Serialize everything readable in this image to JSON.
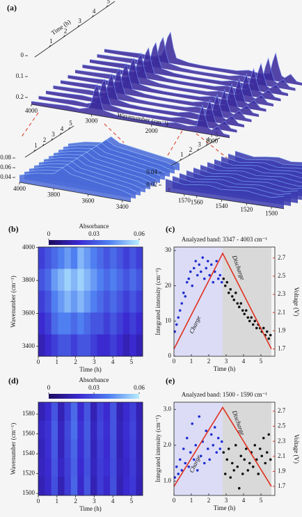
{
  "chart_data": [
    {
      "type": "surface3d",
      "panel_label": "(a)",
      "t_label": "Time (h)",
      "x_label": "Wavenumber (cm⁻¹)",
      "xlim": [
        4000,
        700
      ],
      "tlim": [
        0,
        5.6
      ],
      "xticks": [
        4000,
        3000,
        2000,
        1000
      ],
      "tticks": [
        1,
        2,
        3,
        4,
        5
      ],
      "zticks": [
        0,
        0.1,
        0.2
      ],
      "color": "#3a2a9c",
      "ridge_color": "#7fa0ff",
      "spectrum": {
        "x": [
          4000,
          3700,
          3400,
          3200,
          3050,
          3000,
          2950,
          2900,
          2850,
          2800,
          2600,
          2400,
          2200,
          2000,
          1800,
          1600,
          1400,
          1250,
          1200,
          1150,
          1100,
          1050,
          1000,
          900,
          800,
          700
        ],
        "values": [
          0.01,
          0.012,
          0.015,
          0.012,
          0.02,
          0.04,
          0.08,
          0.1,
          0.05,
          0.02,
          0.012,
          0.01,
          0.01,
          0.011,
          0.012,
          0.02,
          0.015,
          0.02,
          0.06,
          0.09,
          0.05,
          0.02,
          0.015,
          0.03,
          0.01,
          0.008
        ]
      },
      "insets": [
        {
          "xlim": [
            4000,
            3350
          ],
          "tlim": [
            0,
            5.6
          ],
          "xticks": [
            4000,
            3800,
            3600,
            3400
          ],
          "tticks": [
            1,
            2,
            3,
            4,
            5
          ],
          "zticks": [
            0.04,
            0.06,
            0.08
          ],
          "color": "#4a6ad8",
          "ridge_color": "#9fd0ff",
          "spectrum": {
            "x": [
              4000,
              3900,
              3800,
              3750,
              3700,
              3600,
              3500,
              3400,
              3350
            ],
            "values": [
              0.045,
              0.055,
              0.06,
              0.075,
              0.065,
              0.06,
              0.055,
              0.05,
              0.045
            ]
          }
        },
        {
          "xlim": [
            1585,
            1490
          ],
          "tlim": [
            0,
            5.6
          ],
          "xticks": [
            1570,
            1560,
            1540,
            1520,
            1500
          ],
          "tticks": [
            1,
            2,
            3,
            4,
            5
          ],
          "zticks": [
            0.02,
            0.04
          ],
          "color": "#3c3cb0",
          "ridge_color": "#86b8ff",
          "spectrum": {
            "x": [
              1585,
              1570,
              1560,
              1550,
              1540,
              1530,
              1520,
              1510,
              1500,
              1490
            ],
            "values": [
              0.03,
              0.025,
              0.028,
              0.03,
              0.026,
              0.028,
              0.03,
              0.027,
              0.025,
              0.03
            ]
          }
        }
      ]
    },
    {
      "type": "heatmap",
      "panel_label": "(b)",
      "colorbar_label": "Absorbance",
      "zlim": [
        0,
        0.06
      ],
      "zticks": [
        0,
        0.03,
        0.06
      ],
      "colorscale": [
        "#1d0b5e",
        "#3a2ad0",
        "#4f7ff0",
        "#b8ecff"
      ],
      "x_label": "Time (h)",
      "y_label": "Wavenumber (cm⁻¹)",
      "xlim": [
        0,
        5.6
      ],
      "xticks": [
        0,
        1,
        2,
        3,
        4,
        5
      ],
      "ylim": [
        3340,
        4003
      ],
      "yticks": [
        3400,
        3600,
        3800,
        4000
      ],
      "z": [
        [
          0.025,
          0.03,
          0.035,
          0.04,
          0.045,
          0.04,
          0.05,
          0.045,
          0.04,
          0.035,
          0.03,
          0.035,
          0.03,
          0.025,
          0.03,
          0.025
        ],
        [
          0.03,
          0.035,
          0.045,
          0.05,
          0.055,
          0.05,
          0.055,
          0.05,
          0.045,
          0.04,
          0.035,
          0.04,
          0.035,
          0.03,
          0.035,
          0.03
        ],
        [
          0.025,
          0.03,
          0.04,
          0.045,
          0.05,
          0.045,
          0.05,
          0.045,
          0.04,
          0.035,
          0.03,
          0.035,
          0.03,
          0.025,
          0.03,
          0.025
        ],
        [
          0.02,
          0.025,
          0.035,
          0.04,
          0.04,
          0.035,
          0.04,
          0.035,
          0.03,
          0.03,
          0.025,
          0.03,
          0.025,
          0.02,
          0.025,
          0.02
        ],
        [
          0.015,
          0.02,
          0.025,
          0.03,
          0.03,
          0.025,
          0.03,
          0.03,
          0.025,
          0.02,
          0.02,
          0.025,
          0.02,
          0.015,
          0.02,
          0.015
        ]
      ]
    },
    {
      "type": "scatter",
      "panel_label": "(c)",
      "title": "Analyzed band: 3347 - 4003 cm⁻¹",
      "x_label": "Time (h)",
      "y_label": "Integrated intensity (cm⁻¹)",
      "y2_label": "Voltage (V)",
      "xlim": [
        0,
        5.8
      ],
      "xticks": [
        0,
        1,
        2,
        3,
        4,
        5
      ],
      "ylim": [
        0,
        31
      ],
      "yticks": [
        0,
        10,
        20,
        30
      ],
      "y2lim": [
        1.62,
        2.82
      ],
      "y2ticks": [
        1.7,
        1.9,
        2.1,
        2.3,
        2.5,
        2.7
      ],
      "regions": [
        {
          "label": "Charge",
          "x": [
            0,
            2.8
          ],
          "color": "#dcdcf6",
          "text_color": "#6a6ad8"
        },
        {
          "label": "Discharge",
          "x": [
            2.8,
            5.6
          ],
          "color": "#d9d9d9",
          "text_color": "#555"
        }
      ],
      "series": [
        {
          "color": "#1f2fd0",
          "x": [
            0.05,
            0.15,
            0.25,
            0.35,
            0.45,
            0.55,
            0.65,
            0.75,
            0.85,
            0.95,
            1.05,
            1.15,
            1.25,
            1.35,
            1.45,
            1.55,
            1.65,
            1.75,
            1.85,
            1.95,
            2.05,
            2.15,
            2.25,
            2.35,
            2.45,
            2.55,
            2.65,
            2.75
          ],
          "values": [
            7,
            9,
            11,
            13,
            15,
            18,
            17,
            21,
            22,
            24,
            20,
            25,
            27,
            23,
            26,
            24,
            28,
            22,
            25,
            27,
            23,
            26,
            21,
            24,
            27,
            22,
            23,
            21
          ]
        },
        {
          "color": "#111111",
          "x": [
            2.85,
            2.95,
            3.05,
            3.15,
            3.25,
            3.35,
            3.45,
            3.55,
            3.65,
            3.75,
            3.85,
            3.95,
            4.05,
            4.15,
            4.25,
            4.35,
            4.45,
            4.55,
            4.65,
            4.75,
            4.85,
            4.95,
            5.05,
            5.15,
            5.25,
            5.35,
            5.45,
            5.55
          ],
          "values": [
            22,
            20,
            21,
            18,
            19,
            17,
            16,
            18,
            15,
            14,
            15,
            13,
            12,
            13,
            11,
            10,
            11,
            9,
            10,
            8,
            9,
            8,
            7,
            8,
            6,
            7,
            5,
            6
          ]
        },
        {
          "color": "#e0301e",
          "axis": "y2",
          "mode": "line",
          "x": [
            0,
            2.8,
            5.6
          ],
          "values": [
            1.7,
            2.75,
            1.7
          ]
        }
      ]
    },
    {
      "type": "heatmap",
      "panel_label": "(d)",
      "colorbar_label": "Absorbance",
      "zlim": [
        0,
        0.06
      ],
      "zticks": [
        0,
        0.03,
        0.06
      ],
      "colorscale": [
        "#1d0b5e",
        "#3a2ad0",
        "#4f7ff0",
        "#b8ecff"
      ],
      "x_label": "Time (h)",
      "y_label": "Wavenumber (cm⁻¹)",
      "xlim": [
        0,
        5.6
      ],
      "xticks": [
        0,
        1,
        2,
        3,
        4,
        5
      ],
      "ylim": [
        1498,
        1592
      ],
      "yticks": [
        1500,
        1520,
        1540,
        1560,
        1580
      ],
      "z": [
        [
          0.015,
          0.02,
          0.03,
          0.015,
          0.025,
          0.035,
          0.02,
          0.03,
          0.015,
          0.025,
          0.02,
          0.03,
          0.015,
          0.02,
          0.025,
          0.015
        ],
        [
          0.018,
          0.022,
          0.032,
          0.017,
          0.027,
          0.036,
          0.022,
          0.031,
          0.017,
          0.026,
          0.021,
          0.03,
          0.016,
          0.021,
          0.026,
          0.016
        ],
        [
          0.016,
          0.021,
          0.031,
          0.016,
          0.026,
          0.034,
          0.021,
          0.03,
          0.016,
          0.025,
          0.02,
          0.029,
          0.015,
          0.02,
          0.025,
          0.015
        ],
        [
          0.017,
          0.02,
          0.03,
          0.018,
          0.025,
          0.033,
          0.02,
          0.029,
          0.017,
          0.024,
          0.021,
          0.028,
          0.016,
          0.019,
          0.024,
          0.016
        ],
        [
          0.015,
          0.019,
          0.029,
          0.015,
          0.024,
          0.034,
          0.019,
          0.03,
          0.015,
          0.024,
          0.019,
          0.029,
          0.015,
          0.02,
          0.023,
          0.015
        ]
      ]
    },
    {
      "type": "scatter",
      "panel_label": "(e)",
      "title": "Analyzed band: 1500 - 1590 cm⁻¹",
      "x_label": "Time (h)",
      "y_label": "Integrated intensity (cm⁻¹)",
      "y2_label": "Voltage (V)",
      "xlim": [
        0,
        5.8
      ],
      "xticks": [
        0,
        1,
        2,
        3,
        4,
        5
      ],
      "ylim": [
        0.6,
        3.2
      ],
      "yticks": [
        {
          "value": 1,
          "label": "1.0"
        },
        {
          "value": 2,
          "label": "2.0"
        },
        {
          "value": 3,
          "label": "3.0"
        }
      ],
      "y2lim": [
        1.58,
        2.82
      ],
      "y2ticks": [
        1.7,
        1.9,
        2.1,
        2.3,
        2.5,
        2.7
      ],
      "regions": [
        {
          "label": "Charge",
          "x": [
            0,
            2.8
          ],
          "color": "#dcdcf6",
          "text_color": "#6a6ad8"
        },
        {
          "label": "Discharge",
          "x": [
            2.8,
            5.6
          ],
          "color": "#d9d9d9",
          "text_color": "#555"
        }
      ],
      "series": [
        {
          "color": "#1f2fd0",
          "x": [
            0.05,
            0.15,
            0.25,
            0.35,
            0.45,
            0.55,
            0.65,
            0.75,
            0.85,
            0.95,
            1.05,
            1.15,
            1.25,
            1.35,
            1.45,
            1.55,
            1.65,
            1.75,
            1.85,
            1.95,
            2.05,
            2.15,
            2.25,
            2.35,
            2.45,
            2.55,
            2.65,
            2.75
          ],
          "values": [
            1.1,
            1.4,
            1.2,
            1.6,
            1.3,
            1.9,
            1.5,
            2.2,
            1.4,
            1.8,
            2.6,
            1.6,
            2.0,
            1.3,
            2.8,
            1.7,
            2.1,
            1.5,
            2.4,
            1.9,
            1.6,
            2.3,
            2.0,
            2.5,
            1.8,
            2.2,
            1.9,
            2.1
          ]
        },
        {
          "color": "#111111",
          "x": [
            2.85,
            2.95,
            3.05,
            3.15,
            3.25,
            3.35,
            3.45,
            3.55,
            3.65,
            3.75,
            3.85,
            3.95,
            4.05,
            4.15,
            4.25,
            4.35,
            4.45,
            4.55,
            4.65,
            4.75,
            4.85,
            4.95,
            5.05,
            5.15,
            5.25,
            5.35,
            5.45,
            5.55
          ],
          "values": [
            1.8,
            1.2,
            1.6,
            1.9,
            1.1,
            1.5,
            1.3,
            2.0,
            1.4,
            0.8,
            1.7,
            1.2,
            1.6,
            1.9,
            1.3,
            1.5,
            1.8,
            1.4,
            2.0,
            1.6,
            1.2,
            1.9,
            1.7,
            2.2,
            1.5,
            1.8,
            2.3,
            1.6
          ]
        },
        {
          "color": "#e0301e",
          "axis": "y2",
          "mode": "line",
          "x": [
            0,
            2.8,
            5.6
          ],
          "values": [
            1.7,
            2.75,
            1.7
          ]
        }
      ]
    }
  ]
}
